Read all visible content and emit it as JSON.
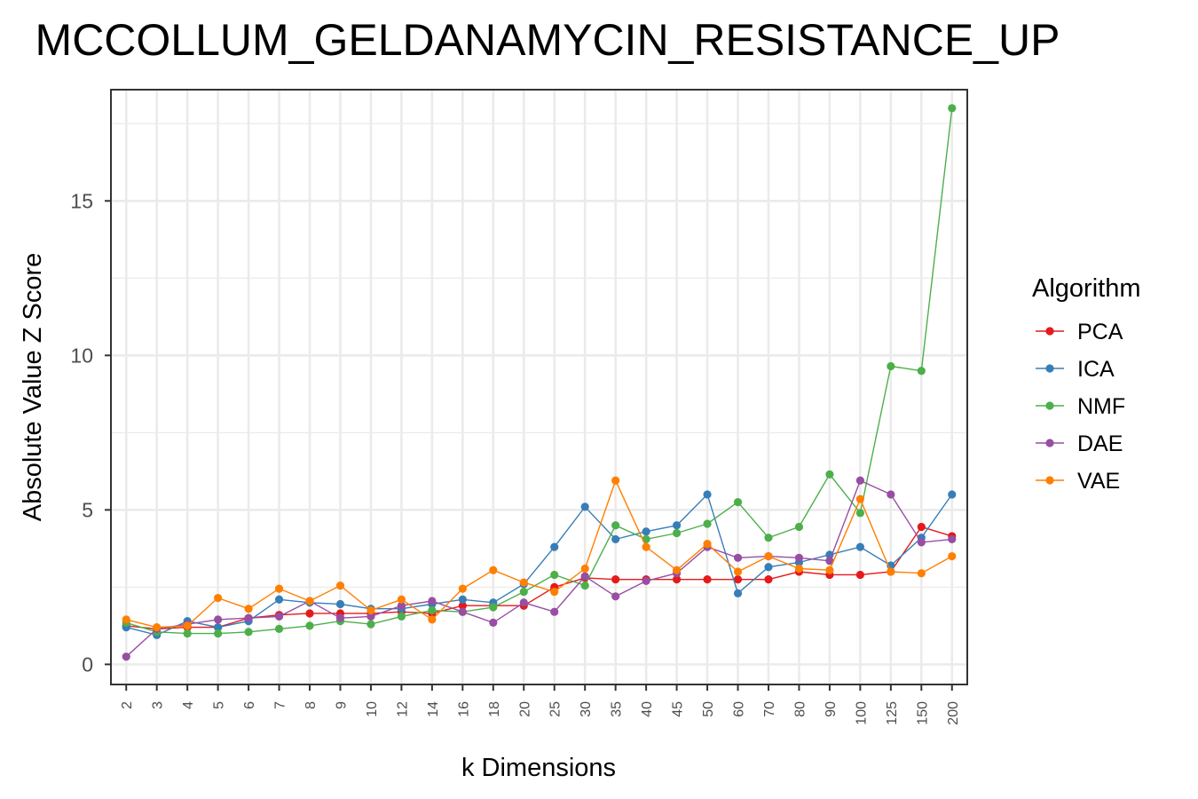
{
  "chart_data": {
    "type": "line",
    "title": "MCCOLLUM_GELDANAMYCIN_RESISTANCE_UP",
    "xlabel": "k Dimensions",
    "ylabel": "Absolute Value Z Score",
    "categories": [
      "2",
      "3",
      "4",
      "5",
      "6",
      "7",
      "8",
      "9",
      "10",
      "12",
      "14",
      "16",
      "18",
      "20",
      "25",
      "30",
      "35",
      "40",
      "45",
      "50",
      "60",
      "70",
      "80",
      "90",
      "100",
      "125",
      "150",
      "200"
    ],
    "ylim": [
      -0.65,
      18.6
    ],
    "yticks": [
      0,
      5,
      10,
      15
    ],
    "grid": true,
    "legend": {
      "title": "Algorithm",
      "position": "right"
    },
    "series": [
      {
        "name": "PCA",
        "color": "#e41a1c",
        "values": [
          1.25,
          1.15,
          1.2,
          1.2,
          1.5,
          1.6,
          1.65,
          1.65,
          1.65,
          1.7,
          1.65,
          1.9,
          1.9,
          1.9,
          2.5,
          2.8,
          2.75,
          2.75,
          2.75,
          2.75,
          2.75,
          2.75,
          3.0,
          2.9,
          2.9,
          3.0,
          4.45,
          4.15
        ]
      },
      {
        "name": "ICA",
        "color": "#377eb8",
        "values": [
          1.2,
          0.95,
          1.4,
          1.2,
          1.4,
          2.1,
          2.0,
          1.95,
          1.8,
          1.8,
          1.95,
          2.1,
          2.0,
          2.6,
          3.8,
          5.1,
          4.05,
          4.3,
          4.5,
          5.5,
          2.3,
          3.15,
          3.3,
          3.55,
          3.8,
          3.2,
          4.1,
          5.5
        ]
      },
      {
        "name": "NMF",
        "color": "#4daf4a",
        "values": [
          1.35,
          1.05,
          1.0,
          1.0,
          1.05,
          1.15,
          1.25,
          1.4,
          1.3,
          1.55,
          1.75,
          1.7,
          1.85,
          2.35,
          2.9,
          2.55,
          4.5,
          4.05,
          4.25,
          4.55,
          5.25,
          4.1,
          4.45,
          6.15,
          4.9,
          9.65,
          9.5,
          18.0
        ]
      },
      {
        "name": "DAE",
        "color": "#984ea3",
        "values": [
          0.25,
          1.15,
          1.3,
          1.45,
          1.5,
          1.55,
          2.05,
          1.5,
          1.55,
          1.9,
          2.05,
          1.7,
          1.35,
          2.0,
          1.7,
          2.85,
          2.2,
          2.7,
          2.95,
          3.8,
          3.45,
          3.5,
          3.45,
          3.35,
          5.95,
          5.5,
          3.95,
          4.05
        ]
      },
      {
        "name": "VAE",
        "color": "#ff7f00",
        "values": [
          1.45,
          1.2,
          1.25,
          2.15,
          1.8,
          2.45,
          2.05,
          2.55,
          1.75,
          2.1,
          1.45,
          2.45,
          3.05,
          2.65,
          2.35,
          3.1,
          5.95,
          3.8,
          3.05,
          3.9,
          3.0,
          3.5,
          3.1,
          3.05,
          5.35,
          3.0,
          2.95,
          3.5
        ]
      }
    ]
  }
}
